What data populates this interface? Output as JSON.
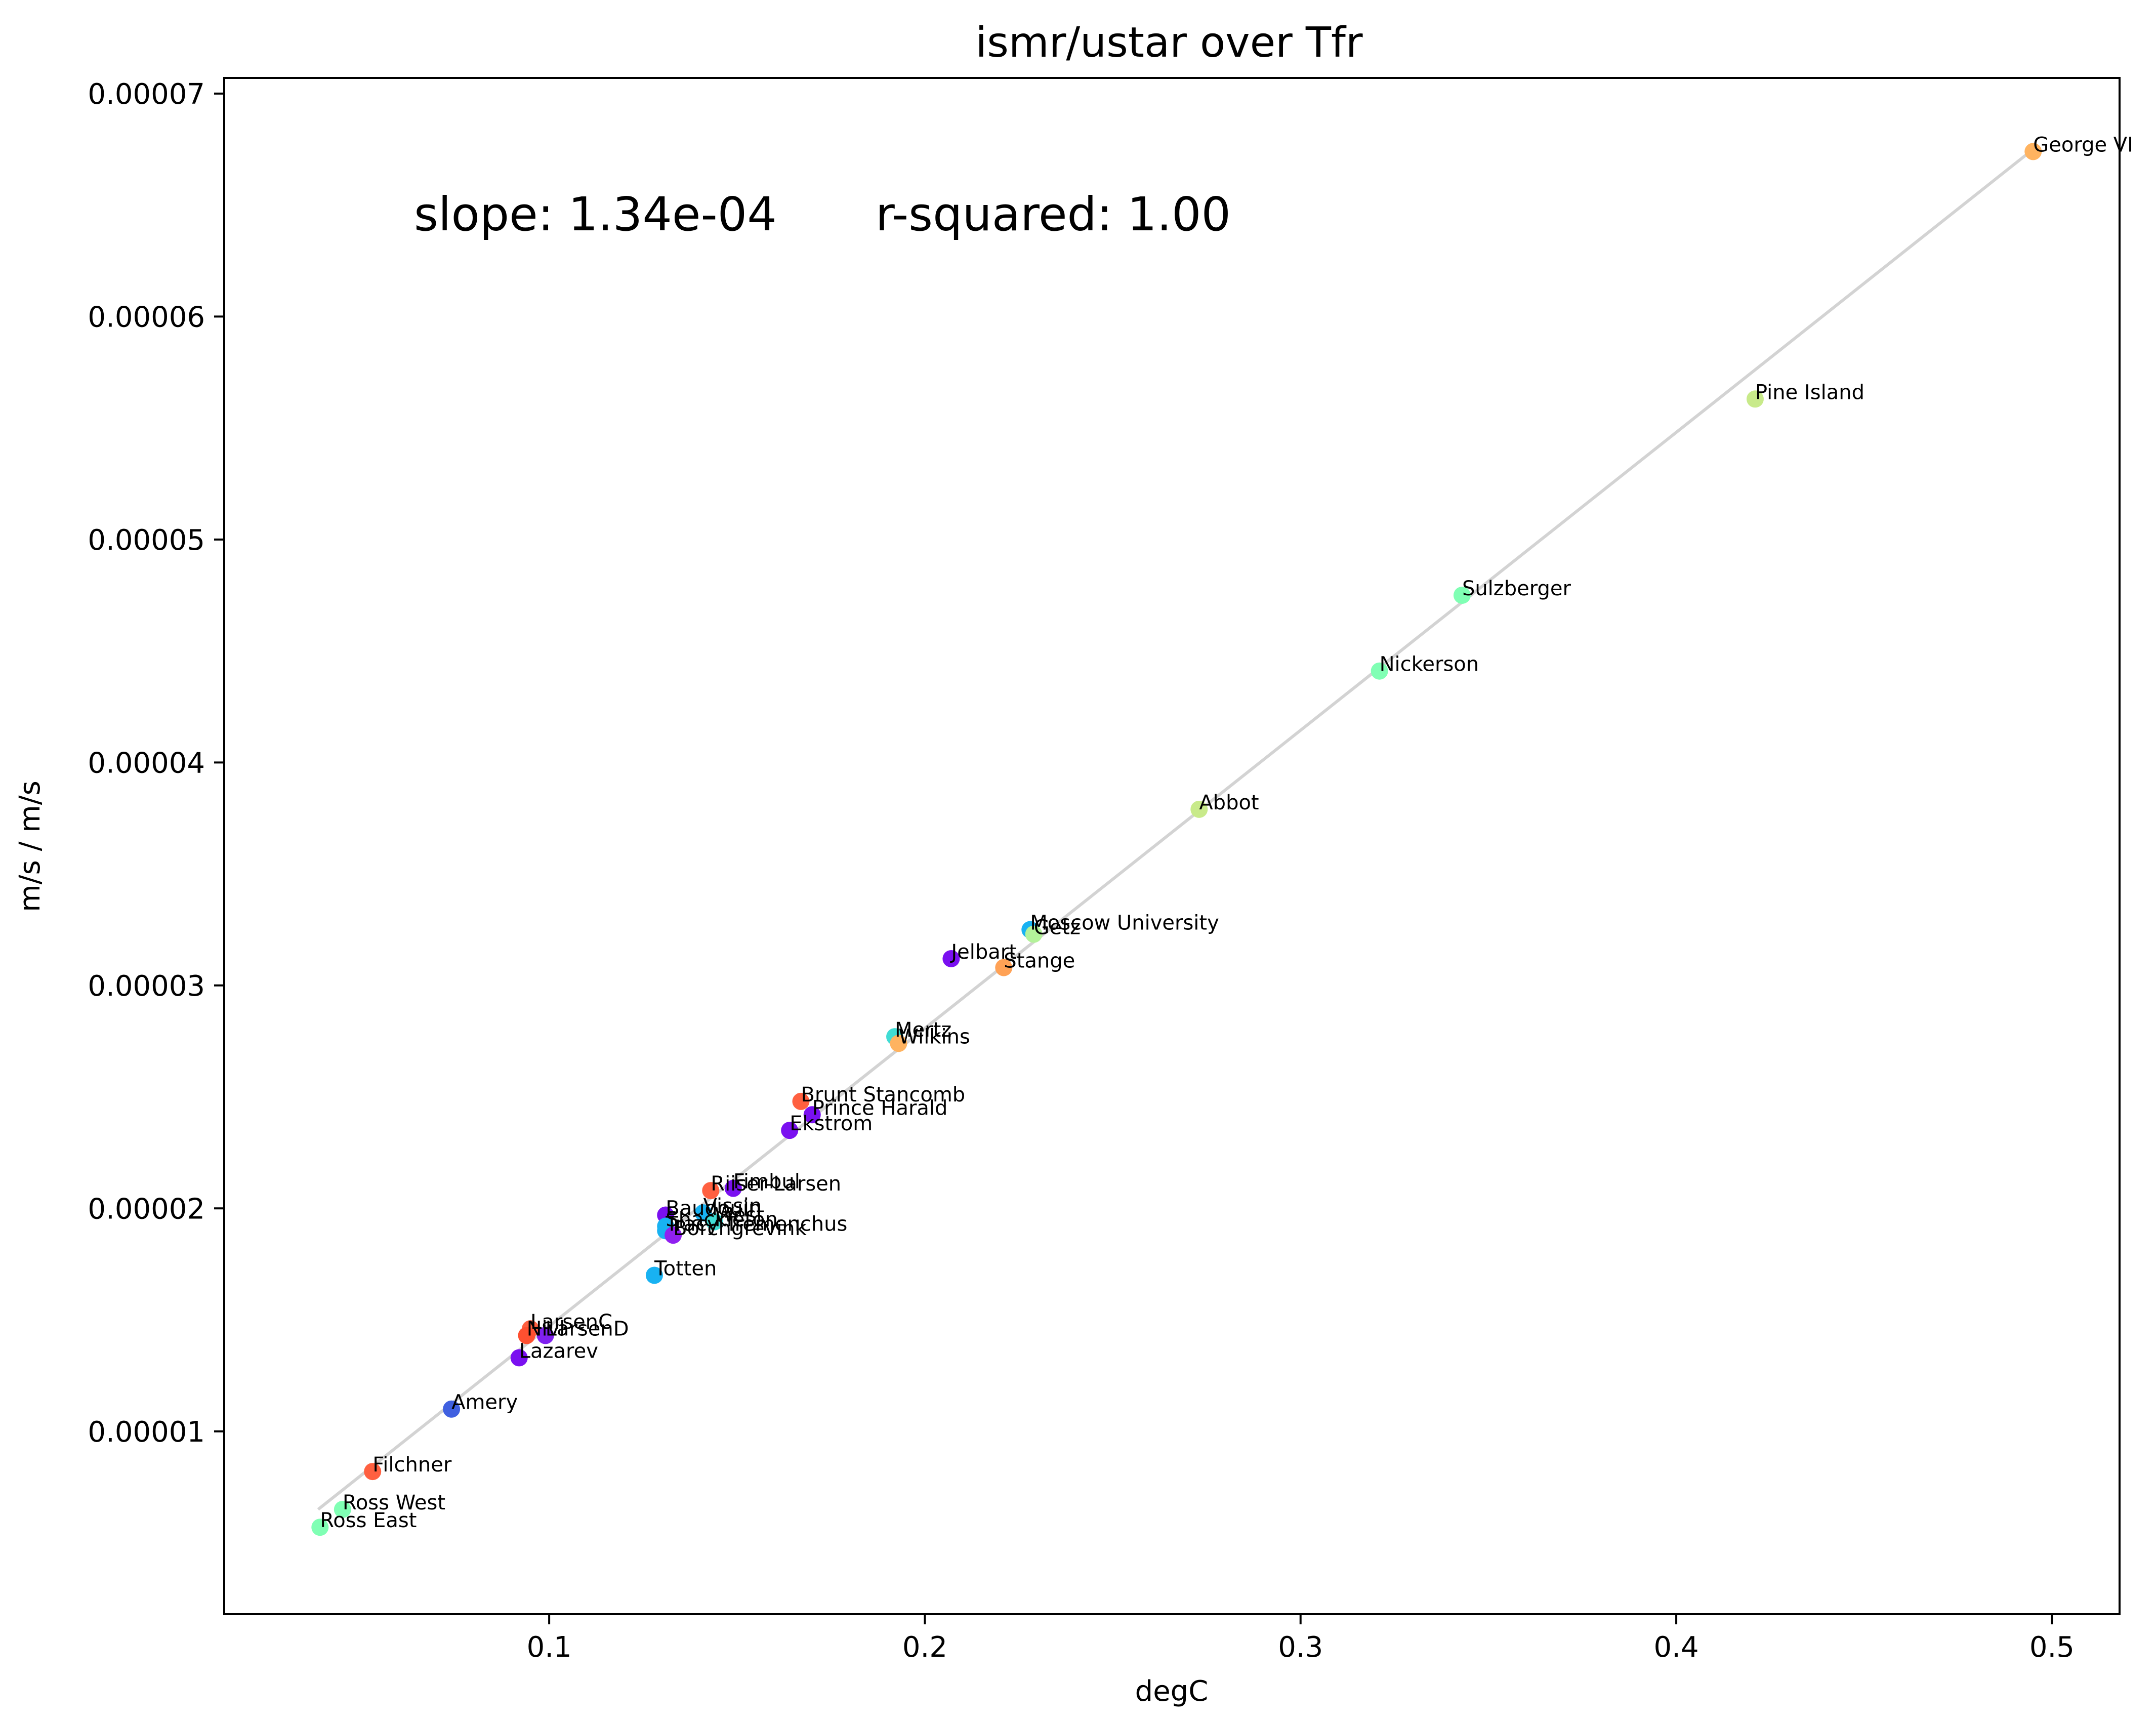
{
  "chart_data": {
    "type": "scatter",
    "title": "ismr/ustar over Tfr",
    "xlabel": "degC",
    "ylabel": "m/s / m/s",
    "xlim": [
      0.0135,
      0.518
    ],
    "ylim": [
      1.8e-06,
      7.07e-05
    ],
    "xticks": [
      0.1,
      0.2,
      0.3,
      0.4,
      0.5
    ],
    "xtick_labels": [
      "0.1",
      "0.2",
      "0.3",
      "0.4",
      "0.5"
    ],
    "yticks": [
      1e-05,
      2e-05,
      3e-05,
      4e-05,
      5e-05,
      6e-05,
      7e-05
    ],
    "ytick_labels": [
      "0.00001",
      "0.00002",
      "0.00003",
      "0.00004",
      "0.00005",
      "0.00006",
      "0.00007"
    ],
    "grid": false,
    "annotation": {
      "slope_text": "slope: 1.34e-04",
      "rsquared_text": "r-squared: 1.00"
    },
    "fit_line": {
      "color": "#d3d3d3",
      "x": [
        0.0385,
        0.495
      ],
      "y": [
        6.5e-06,
        6.75e-05
      ]
    },
    "points": [
      {
        "name": "George VI",
        "x": 0.495,
        "y": 6.74e-05,
        "color": "#ffb360"
      },
      {
        "name": "Pine Island",
        "x": 0.421,
        "y": 5.63e-05,
        "color": "#c8ea8a"
      },
      {
        "name": "Sulzberger",
        "x": 0.343,
        "y": 4.75e-05,
        "color": "#80ffb4"
      },
      {
        "name": "Nickerson",
        "x": 0.321,
        "y": 4.41e-05,
        "color": "#80ffb4"
      },
      {
        "name": "Abbot",
        "x": 0.273,
        "y": 3.79e-05,
        "color": "#c8ea8a"
      },
      {
        "name": "Moscow University",
        "x": 0.228,
        "y": 3.25e-05,
        "color": "#18b2f2"
      },
      {
        "name": "Getz",
        "x": 0.229,
        "y": 3.23e-05,
        "color": "#b4f29a"
      },
      {
        "name": "Jelbart",
        "x": 0.207,
        "y": 3.12e-05,
        "color": "#7a10f0"
      },
      {
        "name": "Stange",
        "x": 0.221,
        "y": 3.08e-05,
        "color": "#ffa256"
      },
      {
        "name": "Mertz",
        "x": 0.192,
        "y": 2.77e-05,
        "color": "#40dcd4"
      },
      {
        "name": "Wilkins",
        "x": 0.193,
        "y": 2.74e-05,
        "color": "#ffb360"
      },
      {
        "name": "Brunt Stancomb",
        "x": 0.167,
        "y": 2.48e-05,
        "color": "#ff6040"
      },
      {
        "name": "Prince Harald",
        "x": 0.17,
        "y": 2.42e-05,
        "color": "#7a10f0"
      },
      {
        "name": "Ekstrom",
        "x": 0.164,
        "y": 2.35e-05,
        "color": "#7a10f0"
      },
      {
        "name": "Riiser-Larsen",
        "x": 0.143,
        "y": 2.08e-05,
        "color": "#ff6040"
      },
      {
        "name": "Fimbul",
        "x": 0.149,
        "y": 2.09e-05,
        "color": "#7a10f0"
      },
      {
        "name": "Baudouin",
        "x": 0.131,
        "y": 1.97e-05,
        "color": "#7a10f0"
      },
      {
        "name": "Vissin",
        "x": 0.141,
        "y": 1.98e-05,
        "color": "#18b2f2"
      },
      {
        "name": "West",
        "x": 0.144,
        "y": 1.94e-05,
        "color": "#40dcd4"
      },
      {
        "name": "Shackleton",
        "x": 0.131,
        "y": 1.92e-05,
        "color": "#18b2f2"
      },
      {
        "name": "Tracy Tremenchus",
        "x": 0.131,
        "y": 1.9e-05,
        "color": "#18b2f2"
      },
      {
        "name": "Borchgrevink",
        "x": 0.133,
        "y": 1.88e-05,
        "color": "#9020f0"
      },
      {
        "name": "Totten",
        "x": 0.128,
        "y": 1.7e-05,
        "color": "#18b2f2"
      },
      {
        "name": "LarsenC",
        "x": 0.095,
        "y": 1.46e-05,
        "color": "#ff6040"
      },
      {
        "name": "LarsenD",
        "x": 0.099,
        "y": 1.43e-05,
        "color": "#8020f0"
      },
      {
        "name": "Nivl",
        "x": 0.094,
        "y": 1.43e-05,
        "color": "#ff5030"
      },
      {
        "name": "Lazarev",
        "x": 0.092,
        "y": 1.33e-05,
        "color": "#7a10f0"
      },
      {
        "name": "Amery",
        "x": 0.074,
        "y": 1.1e-05,
        "color": "#4060e0"
      },
      {
        "name": "Filchner",
        "x": 0.053,
        "y": 8.2e-06,
        "color": "#ff6040"
      },
      {
        "name": "Ross West",
        "x": 0.045,
        "y": 6.5e-06,
        "color": "#80ffb4"
      },
      {
        "name": "Ross East",
        "x": 0.039,
        "y": 5.7e-06,
        "color": "#80ffb4"
      }
    ]
  }
}
